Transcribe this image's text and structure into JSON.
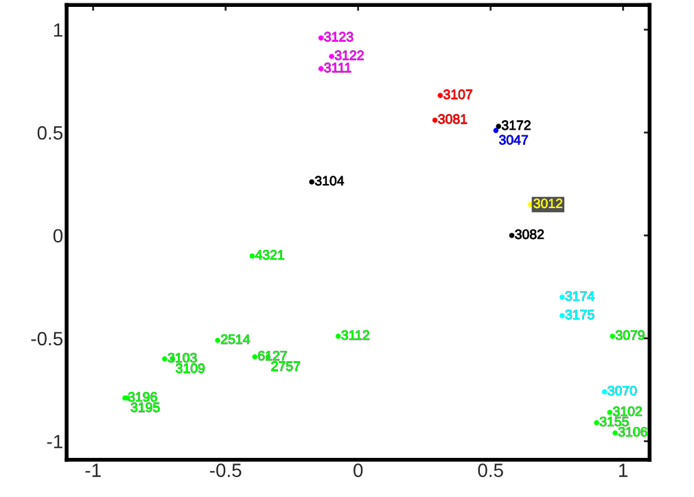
{
  "chart_data": {
    "type": "scatter",
    "x": [
      -0.14,
      -0.1,
      -0.14,
      0.31,
      0.29,
      0.53,
      0.52,
      -0.175,
      0.65,
      0.58,
      -0.4,
      0.77,
      0.77,
      0.96,
      -0.075,
      -0.53,
      -0.73,
      -0.7,
      -0.39,
      -0.34,
      -0.88,
      -0.87,
      0.93,
      0.95,
      0.9,
      0.97
    ],
    "values": [
      0.96,
      0.87,
      0.81,
      0.68,
      0.56,
      0.53,
      0.51,
      0.26,
      0.15,
      0.0,
      -0.1,
      -0.3,
      -0.39,
      -0.49,
      -0.49,
      -0.51,
      -0.6,
      -0.6,
      -0.59,
      -0.59,
      -0.79,
      -0.79,
      -0.76,
      -0.86,
      -0.91,
      -0.96
    ],
    "colors": [
      "#ff00ff",
      "#ff00ff",
      "#ff00ff",
      "#ff0000",
      "#ff0000",
      "#000000",
      "#0000ff",
      "#000000",
      "#ffff00",
      "#000000",
      "#00ff00",
      "#00ffff",
      "#00ffff",
      "#00ff00",
      "#00ff00",
      "#00ff00",
      "#00ff00",
      "#00ff00",
      "#00ff00",
      "#00ff00",
      "#00ff00",
      "#00ff00",
      "#00ffff",
      "#00ff00",
      "#00ff00",
      "#00ff00"
    ],
    "annotations": [
      {
        "text": "3123",
        "x": -0.14,
        "y": 0.96
      },
      {
        "text": "3122",
        "x": -0.1,
        "y": 0.87
      },
      {
        "text": "3111",
        "x": -0.14,
        "y": 0.81
      },
      {
        "text": "3107",
        "x": 0.31,
        "y": 0.68
      },
      {
        "text": "3081",
        "x": 0.29,
        "y": 0.56
      },
      {
        "text": "3172",
        "x": 0.53,
        "y": 0.53
      },
      {
        "text": "3047",
        "x": 0.52,
        "y": 0.51
      },
      {
        "text": "3104",
        "x": -0.175,
        "y": 0.26
      },
      {
        "text": "3012",
        "x": 0.65,
        "y": 0.15
      },
      {
        "text": "3082",
        "x": 0.58,
        "y": 0.0
      },
      {
        "text": "4321",
        "x": -0.4,
        "y": -0.1
      },
      {
        "text": "3174",
        "x": 0.77,
        "y": -0.3
      },
      {
        "text": "3175",
        "x": 0.77,
        "y": -0.39
      },
      {
        "text": "3079",
        "x": 0.96,
        "y": -0.49
      },
      {
        "text": "3112",
        "x": -0.075,
        "y": -0.49
      },
      {
        "text": "2514",
        "x": -0.53,
        "y": -0.51
      },
      {
        "text": "3103",
        "x": -0.73,
        "y": -0.6
      },
      {
        "text": "3109",
        "x": -0.7,
        "y": -0.6
      },
      {
        "text": "6127",
        "x": -0.39,
        "y": -0.59
      },
      {
        "text": "2757",
        "x": -0.34,
        "y": -0.59
      },
      {
        "text": "3196",
        "x": -0.88,
        "y": -0.79
      },
      {
        "text": "3195",
        "x": -0.87,
        "y": -0.79
      },
      {
        "text": "3070",
        "x": 0.93,
        "y": -0.76
      },
      {
        "text": "3102",
        "x": 0.95,
        "y": -0.86
      },
      {
        "text": "3155",
        "x": 0.9,
        "y": -0.91
      },
      {
        "text": "3106",
        "x": 0.97,
        "y": -0.96
      }
    ],
    "xlim": [
      -1.1,
      1.1
    ],
    "ylim": [
      -1.09,
      1.12
    ],
    "xticks": [
      -1,
      -0.5,
      0,
      0.5,
      1
    ],
    "yticks": [
      -1,
      -0.5,
      0,
      0.5,
      1
    ],
    "marker": "circle",
    "grid": false
  }
}
